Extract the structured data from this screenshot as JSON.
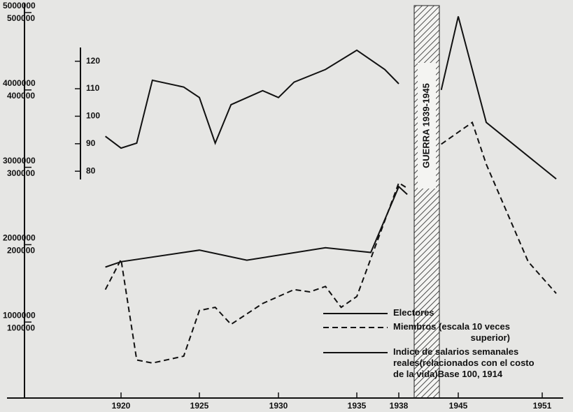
{
  "chart_data": {
    "type": "line",
    "annotation": "GUERRA 1939-1945",
    "xlim": [
      1918,
      1952
    ],
    "xticks": [
      1920,
      1925,
      1930,
      1935,
      1938,
      1945,
      1951
    ],
    "ylim": [
      0,
      5000000
    ],
    "yticks": [
      1000000,
      2000000,
      3000000,
      4000000,
      5000000
    ],
    "y2lim": [
      0,
      500000
    ],
    "y2ticks": [
      100000,
      200000,
      300000,
      400000,
      500000
    ],
    "y3lim": [
      77,
      125
    ],
    "y3ticks": [
      80,
      90,
      100,
      110,
      120
    ],
    "series": [
      {
        "name": "Electores",
        "color": "#111111",
        "dash": false,
        "x": [
          1919,
          1920,
          1925,
          1928,
          1933,
          1936,
          1938,
          1939,
          1941,
          1943,
          1945,
          1947,
          1952
        ],
        "values": [
          1710000,
          1780000,
          1930000,
          1800000,
          1960000,
          1900000,
          2750000,
          2650000,
          null,
          4000000,
          4950000,
          3580000,
          2850000
        ]
      },
      {
        "name": "Miembros (escala 10 veces\nsuperior)",
        "color": "#111111",
        "dash": true,
        "axis": "y2",
        "x": [
          1919,
          1920,
          1921,
          1922,
          1924,
          1925,
          1926,
          1927,
          1929,
          1931,
          1932,
          1933,
          1934,
          1935,
          1938,
          1939,
          1941,
          1943,
          1946,
          1947,
          1950,
          1952
        ],
        "values": [
          142000,
          181000,
          51000,
          47000,
          56000,
          115000,
          119000,
          97000,
          124000,
          142000,
          139000,
          146000,
          119000,
          133000,
          280000,
          273000,
          null,
          330000,
          358000,
          304000,
          178000,
          137000
        ]
      },
      {
        "name": "Indice de salarios semanales\nreales(relacionados con el costo\nde la vida)Base 100, 1914",
        "color": "#111111",
        "dash": false,
        "axis": "y3",
        "x": [
          1919,
          1920,
          1921,
          1922,
          1924,
          1925,
          1926,
          1927,
          1929,
          1930,
          1931,
          1933,
          1935,
          1937,
          1938
        ],
        "values": [
          92.7,
          88.4,
          90.2,
          113.1,
          110.6,
          106.8,
          90.2,
          104.2,
          109.3,
          106.8,
          112.4,
          117,
          124,
          117,
          111.8
        ]
      }
    ]
  }
}
